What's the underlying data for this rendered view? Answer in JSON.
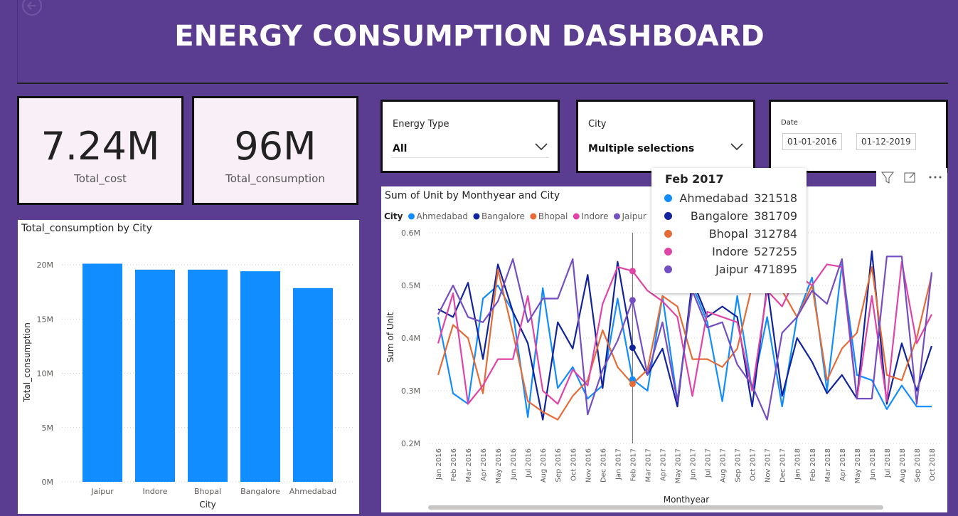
{
  "header": {
    "title": "ENERGY CONSUMPTION DASHBOARD"
  },
  "cards": [
    {
      "value": "7.24M",
      "label": "Total_cost"
    },
    {
      "value": "96M",
      "label": "Total_consumption"
    }
  ],
  "slicers": [
    {
      "label": "Energy Type",
      "selection": "All"
    },
    {
      "label": "City",
      "selection": "Multiple selections"
    },
    {
      "label": "Date",
      "from": "01-01-2016",
      "to": "01-12-2019"
    }
  ],
  "chart_data": [
    {
      "type": "bar",
      "title": "Total_consumption by City",
      "x_label": "City",
      "y_label": "Total_consumption",
      "categories": [
        "Jaipur",
        "Indore",
        "Bhopal",
        "Bangalore",
        "Ahmedabad"
      ],
      "values": [
        20100000,
        19550000,
        19550000,
        19400000,
        17850000
      ],
      "color": "#118DFF",
      "ylim": [
        0,
        22000000
      ],
      "yticks": [
        {
          "value": 0,
          "label": "0M"
        },
        {
          "value": 5000000,
          "label": "5M"
        },
        {
          "value": 10000000,
          "label": "10M"
        },
        {
          "value": 15000000,
          "label": "15M"
        },
        {
          "value": 20000000,
          "label": "20M"
        }
      ],
      "grid": true
    },
    {
      "type": "line",
      "title": "Sum of Unit by Monthyear and City",
      "x_label": "Monthyear",
      "y_label": "Sum of Unit",
      "legend_title": "City",
      "categories": [
        "Jan 2016",
        "Feb 2016",
        "Mar 2016",
        "Apr 2016",
        "May 2016",
        "Jun 2016",
        "Jul 2016",
        "Aug 2016",
        "Sep 2016",
        "Oct 2016",
        "Nov 2016",
        "Dec 2016",
        "Jan 2017",
        "Feb 2017",
        "Mar 2017",
        "Apr 2017",
        "May 2017",
        "Jun 2017",
        "Jul 2017",
        "Aug 2017",
        "Sep 2017",
        "Oct 2017",
        "Nov 2017",
        "Dec 2017",
        "Jan 2018",
        "Feb 2018",
        "Mar 2018",
        "Apr 2018",
        "May 2018",
        "Jun 2018",
        "Jul 2018",
        "Aug 2018",
        "Sep 2018",
        "Oct 2018"
      ],
      "series": [
        {
          "name": "Ahmedabad",
          "color": "#118DFF",
          "values": [
            440000,
            295000,
            275000,
            475000,
            500000,
            450000,
            250000,
            495000,
            305000,
            345000,
            285000,
            310000,
            475000,
            321518,
            300000,
            480000,
            280000,
            500000,
            430000,
            280000,
            480000,
            300000,
            440000,
            270000,
            440000,
            515000,
            300000,
            540000,
            330000,
            320000,
            265000,
            310000,
            270000,
            270000
          ]
        },
        {
          "name": "Bangalore",
          "color": "#12239E",
          "values": [
            455000,
            440000,
            505000,
            360000,
            540000,
            450000,
            390000,
            245000,
            430000,
            380000,
            520000,
            305000,
            545000,
            381709,
            330000,
            380000,
            270000,
            510000,
            440000,
            460000,
            440000,
            270000,
            500000,
            290000,
            400000,
            355000,
            295000,
            330000,
            285000,
            565000,
            275000,
            390000,
            300000,
            385000
          ]
        },
        {
          "name": "Bhopal",
          "color": "#E66C37",
          "values": [
            330000,
            425000,
            400000,
            295000,
            530000,
            410000,
            280000,
            260000,
            245000,
            290000,
            320000,
            415000,
            345000,
            312784,
            340000,
            480000,
            460000,
            360000,
            360000,
            345000,
            380000,
            500000,
            490000,
            490000,
            440000,
            500000,
            320000,
            380000,
            410000,
            535000,
            330000,
            320000,
            400000,
            520000
          ]
        },
        {
          "name": "Indore",
          "color": "#E044A7",
          "values": [
            390000,
            485000,
            275000,
            310000,
            360000,
            360000,
            480000,
            300000,
            275000,
            340000,
            310000,
            465000,
            535000,
            527255,
            490000,
            470000,
            440000,
            290000,
            450000,
            440000,
            430000,
            300000,
            490000,
            460000,
            520000,
            500000,
            540000,
            535000,
            285000,
            480000,
            280000,
            545000,
            390000,
            445000
          ]
        },
        {
          "name": "Jaipur",
          "color": "#744EC2",
          "values": [
            445000,
            500000,
            440000,
            430000,
            470000,
            550000,
            430000,
            475000,
            475000,
            550000,
            255000,
            340000,
            395000,
            471895,
            330000,
            430000,
            280000,
            490000,
            420000,
            430000,
            350000,
            310000,
            245000,
            410000,
            440000,
            490000,
            465000,
            550000,
            285000,
            285000,
            555000,
            555000,
            275000,
            525000
          ]
        }
      ],
      "ylim": [
        200000,
        600000
      ],
      "yticks": [
        {
          "value": 200000,
          "label": "0.2M"
        },
        {
          "value": 300000,
          "label": "0.3M"
        },
        {
          "value": 400000,
          "label": "0.4M"
        },
        {
          "value": 500000,
          "label": "0.5M"
        },
        {
          "value": 600000,
          "label": "0.6M"
        }
      ],
      "grid": true,
      "tooltip_index": 13
    }
  ]
}
